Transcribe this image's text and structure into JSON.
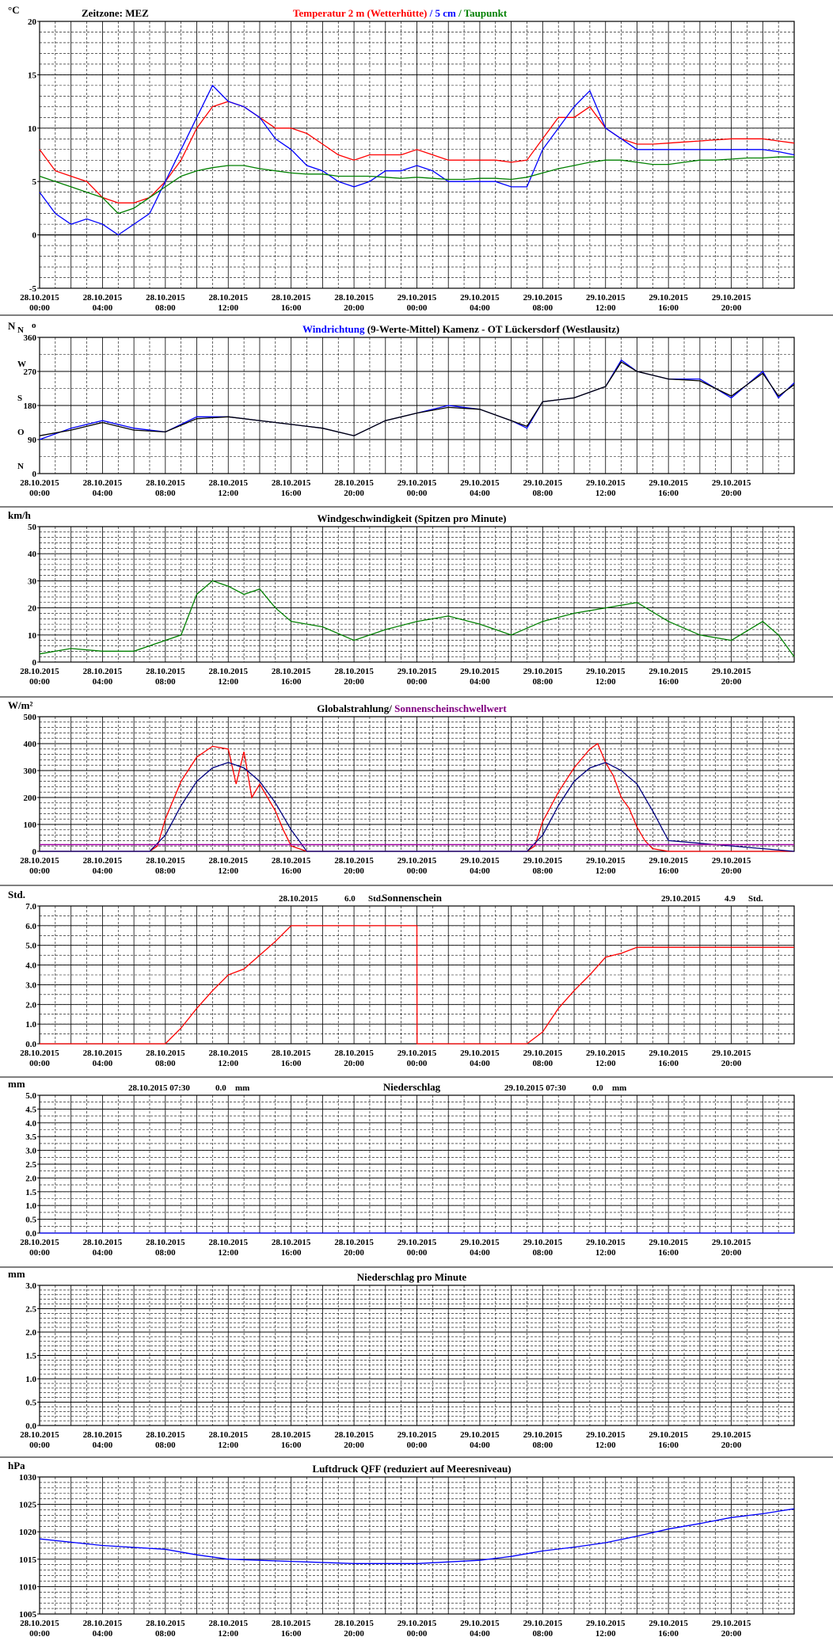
{
  "x_tick_dates": [
    "28.10.2015",
    "28.10.2015",
    "28.10.2015",
    "28.10.2015",
    "28.10.2015",
    "28.10.2015",
    "29.10.2015",
    "29.10.2015",
    "29.10.2015",
    "29.10.2015",
    "29.10.2015",
    "29.10.2015"
  ],
  "x_tick_times": [
    "00:00",
    "04:00",
    "08:00",
    "12:00",
    "16:00",
    "20:00",
    "00:00",
    "04:00",
    "08:00",
    "12:00",
    "16:00",
    "20:00"
  ],
  "chart_data": [
    {
      "type": "line",
      "unit": "°C",
      "ylim": [
        -5,
        20
      ],
      "yticks": [
        "-5",
        "0",
        "5",
        "10",
        "15",
        "20"
      ],
      "x_hours_range": [
        0,
        48
      ],
      "header_left": "Zeitzone: MEZ",
      "title_parts": [
        {
          "text": "Temperatur 2 m (Wetterhütte)",
          "color": "#ff0000"
        },
        {
          "text": " / ",
          "color": "#0000ff"
        },
        {
          "text": "5 cm",
          "color": "#0000ff"
        },
        {
          "text": " / ",
          "color": "#008000"
        },
        {
          "text": "Taupunkt",
          "color": "#008000"
        }
      ],
      "series": [
        {
          "color": "#ff0000",
          "x": [
            0,
            1,
            2,
            3,
            4,
            5,
            6,
            7,
            8,
            9,
            10,
            11,
            12,
            13,
            14,
            15,
            16,
            17,
            18,
            19,
            20,
            21,
            22,
            23,
            24,
            25,
            26,
            27,
            28,
            29,
            30,
            31,
            32,
            33,
            34,
            35,
            36,
            37,
            38,
            39,
            40,
            41,
            42,
            43,
            44,
            45,
            46,
            47,
            48
          ],
          "values": [
            8,
            6,
            5.5,
            5,
            3.5,
            3,
            3,
            3.5,
            5,
            7,
            10,
            12,
            12.5,
            12,
            11,
            10,
            10,
            9.5,
            8.5,
            7.5,
            7,
            7.5,
            7.5,
            7.5,
            8,
            7.5,
            7,
            7,
            7,
            7,
            6.8,
            7,
            9,
            11,
            11,
            12,
            10,
            9,
            8.5,
            8.5,
            8.6,
            8.7,
            8.8,
            8.9,
            9,
            9,
            9,
            8.8,
            8.6
          ]
        },
        {
          "color": "#0000ff",
          "x": [
            0,
            1,
            2,
            3,
            4,
            5,
            6,
            7,
            8,
            9,
            10,
            11,
            12,
            13,
            14,
            15,
            16,
            17,
            18,
            19,
            20,
            21,
            22,
            23,
            24,
            25,
            26,
            27,
            28,
            29,
            30,
            31,
            32,
            33,
            34,
            35,
            36,
            37,
            38,
            39,
            40,
            41,
            42,
            43,
            44,
            45,
            46,
            47,
            48
          ],
          "values": [
            4,
            2,
            1,
            1.5,
            1,
            0,
            1,
            2,
            5,
            8,
            11,
            14,
            12.5,
            12,
            11,
            9,
            8,
            6.5,
            6,
            5,
            4.5,
            5,
            6,
            6,
            6.5,
            6,
            5,
            5,
            5,
            5,
            4.5,
            4.5,
            8,
            10,
            12,
            13.5,
            10,
            9,
            8,
            8,
            8,
            8,
            8,
            8,
            8,
            8,
            8,
            7.8,
            7.5
          ]
        },
        {
          "color": "#008000",
          "x": [
            0,
            1,
            2,
            3,
            4,
            5,
            6,
            7,
            8,
            9,
            10,
            11,
            12,
            13,
            14,
            15,
            16,
            17,
            18,
            19,
            20,
            21,
            22,
            23,
            24,
            25,
            26,
            27,
            28,
            29,
            30,
            31,
            32,
            33,
            34,
            35,
            36,
            37,
            38,
            39,
            40,
            41,
            42,
            43,
            44,
            45,
            46,
            47,
            48
          ],
          "values": [
            5.5,
            5,
            4.5,
            4,
            3.5,
            2,
            2.5,
            3.5,
            4.5,
            5.5,
            6,
            6.3,
            6.5,
            6.5,
            6.2,
            6,
            5.8,
            5.7,
            5.7,
            5.5,
            5.5,
            5.5,
            5.4,
            5.3,
            5.4,
            5.3,
            5.2,
            5.2,
            5.3,
            5.3,
            5.2,
            5.4,
            5.8,
            6.2,
            6.5,
            6.8,
            7,
            7,
            6.8,
            6.6,
            6.6,
            6.8,
            7,
            7,
            7.1,
            7.2,
            7.2,
            7.3,
            7.3
          ]
        }
      ]
    },
    {
      "type": "line",
      "unit": "N",
      "ylim": [
        0,
        360
      ],
      "yticks": [
        "0",
        "90",
        "180",
        "270",
        "360"
      ],
      "compass_labels": [
        "N",
        "O",
        "S",
        "W",
        "N"
      ],
      "x_hours_range": [
        0,
        48
      ],
      "degree_mark": "o",
      "title_parts": [
        {
          "text": "Windrichtung",
          "color": "#0000ff"
        },
        {
          "text": " (9-Werte-Mittel)",
          "color": "#000000"
        },
        {
          "text": "         Kamenz - OT Lückersdorf (Westlausitz)",
          "color": "#000000"
        }
      ],
      "series": [
        {
          "color": "#0000ff",
          "x": [
            0,
            2,
            4,
            6,
            8,
            10,
            12,
            14,
            16,
            18,
            20,
            22,
            24,
            26,
            28,
            30,
            31,
            32,
            34,
            36,
            37,
            38,
            40,
            42,
            44,
            46,
            47,
            48
          ],
          "values": [
            90,
            120,
            140,
            120,
            110,
            150,
            150,
            140,
            130,
            120,
            100,
            140,
            160,
            180,
            170,
            140,
            120,
            190,
            200,
            230,
            300,
            270,
            250,
            250,
            200,
            270,
            200,
            240
          ]
        },
        {
          "color": "#000000",
          "x": [
            0,
            2,
            4,
            6,
            8,
            10,
            12,
            14,
            16,
            18,
            20,
            22,
            24,
            26,
            28,
            30,
            31,
            32,
            34,
            36,
            37,
            38,
            40,
            42,
            44,
            46,
            47,
            48
          ],
          "values": [
            100,
            115,
            135,
            115,
            110,
            145,
            150,
            140,
            130,
            120,
            100,
            140,
            160,
            175,
            170,
            140,
            125,
            190,
            200,
            230,
            295,
            270,
            250,
            245,
            205,
            265,
            205,
            235
          ]
        }
      ]
    },
    {
      "type": "line",
      "unit": "km/h",
      "ylim": [
        0,
        50
      ],
      "yticks": [
        "0",
        "10",
        "20",
        "30",
        "40",
        "50"
      ],
      "x_hours_range": [
        0,
        48
      ],
      "title_parts": [
        {
          "text": "Windgeschwindigkeit (Spitzen pro Minute)",
          "color": "#000000"
        }
      ],
      "series": [
        {
          "color": "#008000",
          "x": [
            0,
            2,
            4,
            6,
            8,
            9,
            10,
            11,
            12,
            13,
            14,
            15,
            16,
            18,
            20,
            22,
            24,
            26,
            28,
            30,
            32,
            34,
            36,
            38,
            40,
            42,
            44,
            46,
            47,
            48
          ],
          "values": [
            3,
            5,
            4,
            4,
            8,
            10,
            25,
            30,
            28,
            25,
            27,
            20,
            15,
            13,
            8,
            12,
            15,
            17,
            14,
            10,
            15,
            18,
            20,
            22,
            15,
            10,
            8,
            15,
            10,
            2
          ]
        }
      ]
    },
    {
      "type": "line",
      "unit": "W/m²",
      "ylim": [
        0,
        500
      ],
      "yticks": [
        "0",
        "100",
        "200",
        "300",
        "400",
        "500"
      ],
      "x_hours_range": [
        0,
        48
      ],
      "title_parts": [
        {
          "text": "Globalstrahlung/ ",
          "color": "#000000"
        },
        {
          "text": "Sonnenscheinschwellwert",
          "color": "#800080"
        }
      ],
      "series": [
        {
          "color": "#ff0000",
          "x": [
            0,
            6,
            7,
            7.5,
            8,
            9,
            10,
            11,
            12,
            12.5,
            13,
            13.5,
            14,
            14.5,
            15,
            15.5,
            16,
            17,
            24,
            30,
            31,
            31.5,
            32,
            33,
            34,
            35,
            35.5,
            36,
            36.5,
            37,
            37.5,
            38,
            38.5,
            39,
            40,
            48
          ],
          "values": [
            0,
            0,
            0,
            20,
            120,
            260,
            350,
            390,
            380,
            250,
            370,
            200,
            250,
            200,
            150,
            80,
            20,
            0,
            0,
            0,
            0,
            20,
            110,
            220,
            310,
            380,
            400,
            330,
            280,
            200,
            160,
            90,
            40,
            10,
            0,
            0
          ]
        },
        {
          "color": "#000080",
          "x": [
            0,
            7,
            8,
            9,
            10,
            11,
            12,
            13,
            14,
            15,
            16,
            17,
            24,
            30,
            31,
            32,
            33,
            34,
            35,
            36,
            37,
            38,
            39,
            40,
            48
          ],
          "values": [
            0,
            0,
            60,
            170,
            260,
            310,
            330,
            310,
            260,
            180,
            80,
            0,
            0,
            0,
            0,
            60,
            170,
            260,
            310,
            330,
            300,
            250,
            150,
            40,
            0
          ]
        },
        {
          "color": "#a000a0",
          "x": [
            0,
            48
          ],
          "values": [
            25,
            25
          ]
        }
      ]
    },
    {
      "type": "line",
      "unit": "Std.",
      "ylim": [
        0,
        7
      ],
      "yticks": [
        "0.0",
        "1.0",
        "2.0",
        "3.0",
        "4.0",
        "5.0",
        "6.0",
        "7.0"
      ],
      "x_hours_range": [
        0,
        48
      ],
      "title_parts": [
        {
          "text": "Sonnenschein",
          "color": "#000000"
        }
      ],
      "annotations_left": {
        "date": "28.10.2015",
        "value": "6.0",
        "unit": "Std."
      },
      "annotations_right": {
        "date": "29.10.2015",
        "value": "4.9",
        "unit": "Std."
      },
      "series": [
        {
          "color": "#ff0000",
          "x": [
            0,
            8,
            9,
            10,
            11,
            12,
            13,
            14,
            15,
            16,
            17,
            24,
            24.01,
            31,
            32,
            33,
            34,
            35,
            36,
            37,
            38,
            40,
            48
          ],
          "values": [
            0,
            0,
            0.8,
            1.8,
            2.7,
            3.5,
            3.8,
            4.5,
            5.2,
            6,
            6,
            6,
            0,
            0,
            0.6,
            1.8,
            2.7,
            3.5,
            4.4,
            4.6,
            4.9,
            4.9,
            4.9
          ]
        }
      ]
    },
    {
      "type": "line",
      "unit": "mm",
      "ylim": [
        0,
        5
      ],
      "yticks": [
        "0.0",
        "0.5",
        "1.0",
        "1.5",
        "2.0",
        "2.5",
        "3.0",
        "3.5",
        "4.0",
        "4.5",
        "5.0"
      ],
      "x_hours_range": [
        0,
        48
      ],
      "title_parts": [
        {
          "text": "Niederschlag",
          "color": "#000000"
        }
      ],
      "annotations_left": {
        "date": "28.10.2015 07:30",
        "value": "0.0",
        "unit": "mm"
      },
      "annotations_right": {
        "date": "29.10.2015 07:30",
        "value": "0.0",
        "unit": "mm"
      },
      "series": [
        {
          "color": "#0000ff",
          "x": [
            0,
            48
          ],
          "values": [
            0,
            0
          ]
        }
      ]
    },
    {
      "type": "line",
      "unit": "mm",
      "ylim": [
        0,
        3
      ],
      "yticks": [
        "0.0",
        "0.5",
        "1.0",
        "1.5",
        "2.0",
        "2.5",
        "3.0"
      ],
      "x_hours_range": [
        0,
        48
      ],
      "title_parts": [
        {
          "text": "Niederschlag pro Minute",
          "color": "#000000"
        }
      ],
      "series": []
    },
    {
      "type": "line",
      "unit": "hPa",
      "ylim": [
        1005,
        1030
      ],
      "yticks": [
        "1005",
        "1010",
        "1015",
        "1020",
        "1025",
        "1030"
      ],
      "x_hours_range": [
        0,
        48
      ],
      "title_parts": [
        {
          "text": "Luftdruck QFF (reduziert auf Meeresniveau)",
          "color": "#000000"
        }
      ],
      "series": [
        {
          "color": "#0000ff",
          "x": [
            0,
            4,
            8,
            10,
            12,
            16,
            20,
            24,
            28,
            30,
            32,
            34,
            36,
            38,
            40,
            42,
            44,
            46,
            48
          ],
          "values": [
            1018.7,
            1017.5,
            1016.8,
            1015.8,
            1015,
            1014.6,
            1014.2,
            1014.2,
            1014.8,
            1015.5,
            1016.5,
            1017.2,
            1018,
            1019.2,
            1020.5,
            1021.5,
            1022.6,
            1023.3,
            1024.2
          ]
        }
      ]
    }
  ]
}
